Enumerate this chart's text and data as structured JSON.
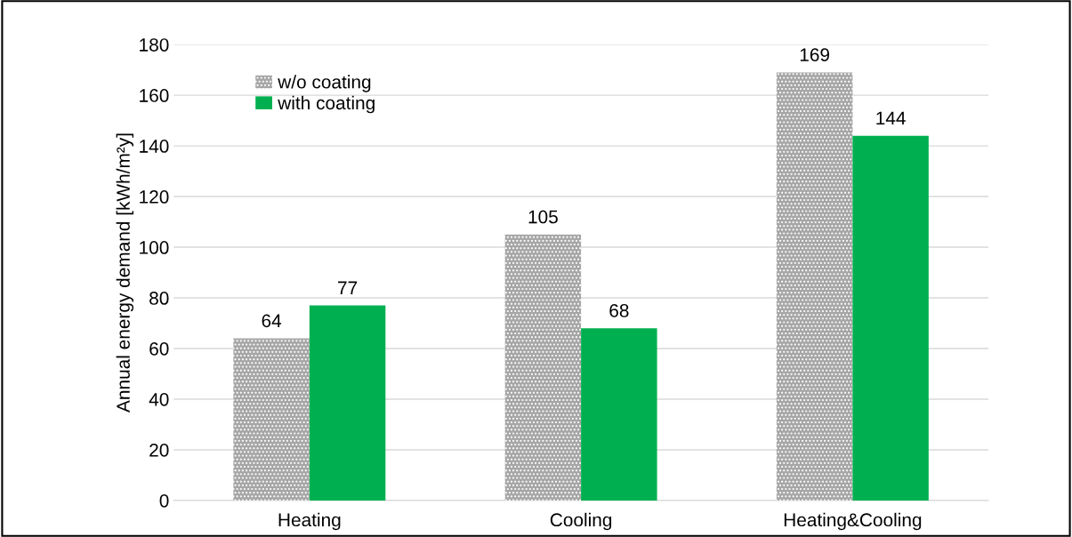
{
  "chart_data": {
    "type": "bar",
    "ylabel": "Annual energy demand [kWh/m²y]",
    "categories": [
      "Heating",
      "Cooling",
      "Heating&Cooling"
    ],
    "series": [
      {
        "name": "w/o coating",
        "color": "#a6a6a6",
        "values": [
          64,
          105,
          169
        ]
      },
      {
        "name": "with coating",
        "color": "#00b050",
        "values": [
          77,
          68,
          144
        ]
      }
    ],
    "ylim": [
      0,
      180
    ],
    "yticks": [
      0,
      20,
      40,
      60,
      80,
      100,
      120,
      140,
      160,
      180
    ],
    "grid": "y",
    "legend": "top left",
    "data_labels": true
  }
}
